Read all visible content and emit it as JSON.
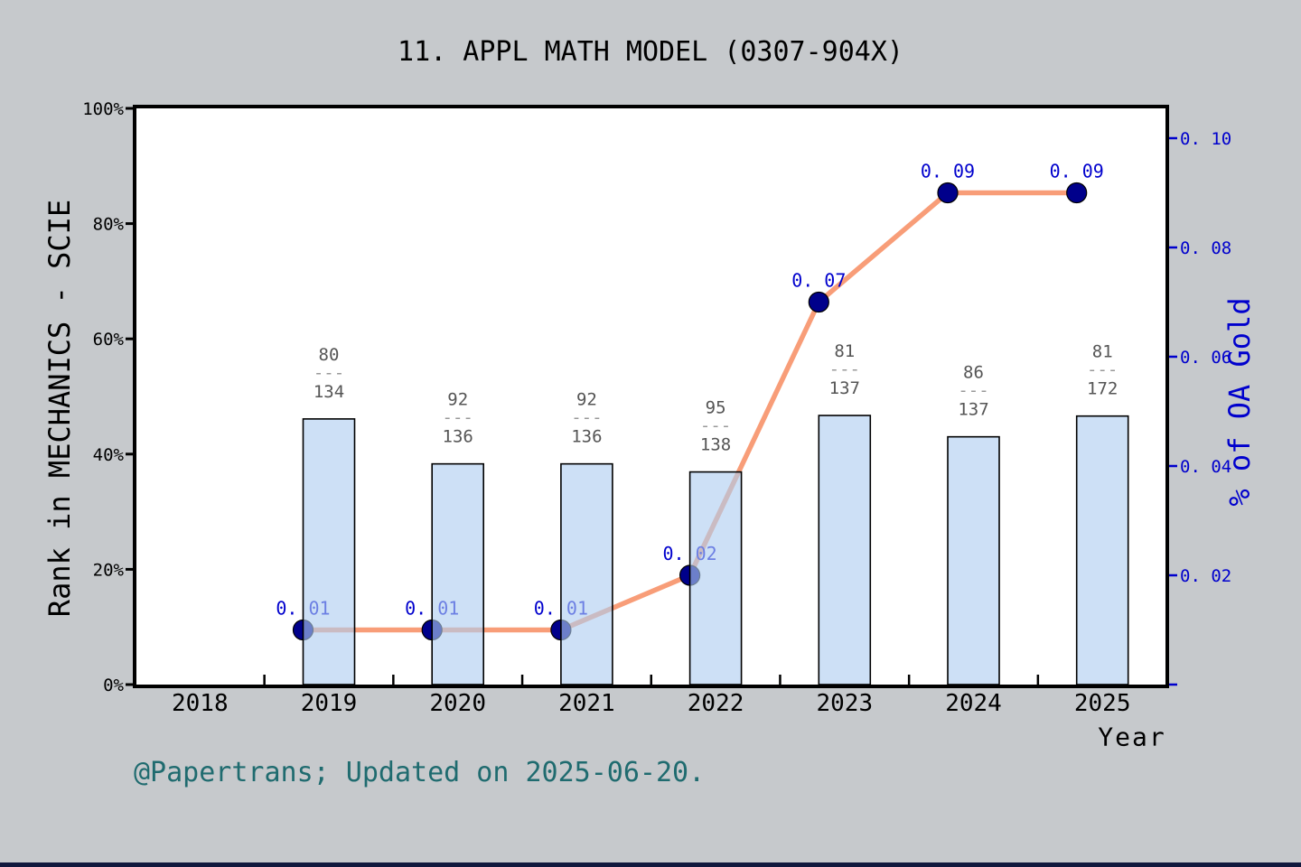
{
  "title": "11.  APPL MATH MODEL (0307-904X)",
  "annotation": "@Papertrans; Updated on 2025-06-20.",
  "chart_data": {
    "type": "bar+line",
    "title": "11.  APPL MATH MODEL (0307-904X)",
    "x_label": "Year",
    "x_axis_ticks": [
      "2018",
      "2019",
      "2020",
      "2021",
      "2022",
      "2023",
      "2024",
      "2025"
    ],
    "x_years": [
      2019,
      2020,
      2021,
      2022,
      2023,
      2024,
      2025
    ],
    "grid": false,
    "legend": false,
    "left_axis": {
      "label": "Rank in MECHANICS - SCIE",
      "ticks": [
        "0%",
        "20%",
        "40%",
        "60%",
        "80%",
        "100%"
      ],
      "tick_values": [
        0,
        20,
        40,
        60,
        80,
        100
      ],
      "range": [
        0,
        100
      ]
    },
    "right_axis": {
      "label": "% of OA Gold",
      "ticks": [
        "0. 02",
        "0. 04",
        "0. 06",
        "0. 08",
        "0. 10"
      ],
      "tick_values": [
        0.02,
        0.04,
        0.06,
        0.08,
        0.1
      ],
      "range": [
        0,
        0.106
      ],
      "has_unlabeled_zero_tick": true
    },
    "bar_series": {
      "name": "Rank in MECHANICS - SCIE",
      "axis": "left",
      "values_pct": [
        46.1,
        38.3,
        38.3,
        36.9,
        46.7,
        43.0,
        46.6
      ],
      "fraction_labels": [
        {
          "numerator": "80",
          "denominator": "134"
        },
        {
          "numerator": "92",
          "denominator": "136"
        },
        {
          "numerator": "92",
          "denominator": "136"
        },
        {
          "numerator": "95",
          "denominator": "138"
        },
        {
          "numerator": "81",
          "denominator": "137"
        },
        {
          "numerator": "86",
          "denominator": "137"
        },
        {
          "numerator": "81",
          "denominator": "172"
        }
      ],
      "fraction_dash": "---"
    },
    "line_series": {
      "name": "% of OA Gold",
      "axis": "right",
      "values": [
        0.01,
        0.01,
        0.01,
        0.02,
        0.07,
        0.09,
        0.09
      ],
      "point_labels": [
        "0. 01",
        "0. 01",
        "0. 01",
        "0. 02",
        "0. 07",
        "0. 09",
        "0. 09"
      ]
    }
  },
  "colors": {
    "background": "#c6c9cc",
    "plot_background": "#ffffff",
    "axis_spine": "#000000",
    "bar_fill": "#aecdf0",
    "bar_fill_opacity": 0.62,
    "bar_edge": "#000000",
    "line": "#f89d78",
    "marker": "#00008b",
    "point_label": "#0000cd",
    "right_axis_color": "#0000cd",
    "fraction_label": "#555555",
    "fraction_dash": "#999999",
    "annotation_color": "#1f6b6f",
    "bottom_strip": "#11183d"
  }
}
